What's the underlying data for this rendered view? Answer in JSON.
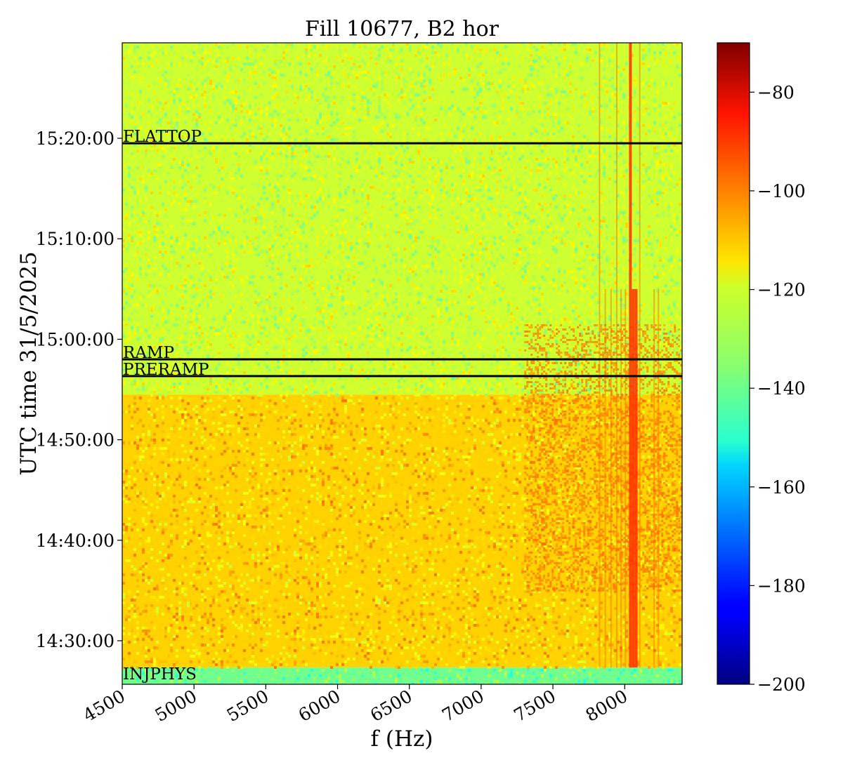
{
  "chart_data": {
    "type": "heatmap",
    "title": "Fill 10677, B2 hor",
    "xlabel": "f (Hz)",
    "ylabel": "UTC time 31/5/2025",
    "xlim": [
      4500,
      8400
    ],
    "x_ticks": [
      4500,
      5000,
      5500,
      6000,
      6500,
      7000,
      7500,
      8000
    ],
    "x_tick_labels": [
      "4500",
      "5000",
      "5500",
      "6000",
      "6500",
      "7000",
      "7500",
      "8000"
    ],
    "ylim": [
      "14:25:40",
      "15:29:30"
    ],
    "y_ticks": [
      "14:30:00",
      "14:40:00",
      "14:50:00",
      "15:00:00",
      "15:10:00",
      "15:20:00"
    ],
    "y_tick_labels": [
      "14:30:00",
      "14:40:00",
      "14:50:00",
      "15:00:00",
      "15:10:00",
      "15:20:00"
    ],
    "colormap": "jet",
    "colorbar": {
      "min": -200,
      "max": -70,
      "ticks": [
        -80,
        -100,
        -120,
        -140,
        -160,
        -180,
        -200
      ],
      "tick_labels": [
        "−80",
        "−100",
        "−120",
        "−140",
        "−160",
        "−180",
        "−200"
      ]
    },
    "typical_levels": {
      "before_ramp": -113,
      "after_ramp": -125,
      "injection_band": -137,
      "lines_near_8000_hz": -100
    },
    "annotations": [
      {
        "label": "FLATTOP",
        "time": "15:19:30"
      },
      {
        "label": "RAMP",
        "time": "14:58:00"
      },
      {
        "label": "PRERAMP",
        "time": "14:56:20"
      },
      {
        "label": "INJPHYS",
        "time": "14:26:00"
      }
    ]
  }
}
